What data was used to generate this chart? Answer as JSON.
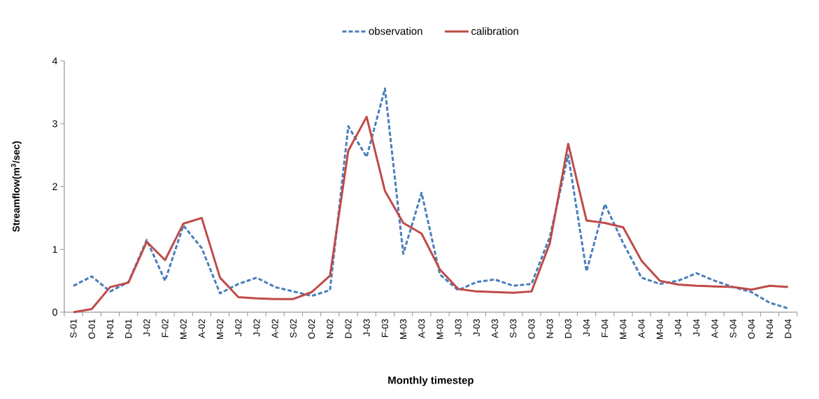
{
  "chart_data": {
    "type": "line",
    "xlabel": "Monthly timestep",
    "ylabel": "Streamflow(m$^{3}$/sec)",
    "categories": [
      "S-01",
      "O-01",
      "N-01",
      "D-01",
      "J-02",
      "F-02",
      "M-02",
      "A-02",
      "M-02",
      "J-02",
      "J-02",
      "A-02",
      "S-02",
      "O-02",
      "N-02",
      "D-02",
      "J-03",
      "F-03",
      "M-03",
      "A-03",
      "M-03",
      "J-03",
      "J-03",
      "A-03",
      "S-03",
      "O-03",
      "N-03",
      "D-03",
      "J-04",
      "F-04",
      "M-04",
      "A-04",
      "M-04",
      "J-04",
      "J-04",
      "A-04",
      "S-04",
      "O-04",
      "N-04",
      "D-04"
    ],
    "series": [
      {
        "name": "observation",
        "color": "#4a7ebb",
        "line_style": "dashed",
        "values": [
          0.42,
          0.57,
          0.33,
          0.48,
          1.15,
          0.5,
          1.38,
          1.02,
          0.3,
          0.45,
          0.55,
          0.4,
          0.33,
          0.26,
          0.35,
          2.96,
          2.47,
          3.56,
          0.93,
          1.9,
          0.6,
          0.35,
          0.48,
          0.52,
          0.42,
          0.45,
          1.2,
          2.5,
          0.65,
          1.72,
          1.1,
          0.55,
          0.45,
          0.5,
          0.62,
          0.5,
          0.4,
          0.32,
          0.15,
          0.06
        ]
      },
      {
        "name": "calibration",
        "color": "#be4b48",
        "line_style": "solid",
        "values": [
          0.0,
          0.05,
          0.4,
          0.47,
          1.12,
          0.83,
          1.41,
          1.5,
          0.55,
          0.24,
          0.22,
          0.21,
          0.21,
          0.32,
          0.58,
          2.57,
          3.11,
          1.93,
          1.42,
          1.25,
          0.68,
          0.37,
          0.33,
          0.32,
          0.31,
          0.33,
          1.1,
          2.68,
          1.46,
          1.42,
          1.35,
          0.82,
          0.5,
          0.44,
          0.42,
          0.41,
          0.4,
          0.36,
          0.42,
          0.4
        ]
      }
    ],
    "ylim": [
      0,
      4
    ],
    "yticks": [
      0,
      1,
      2,
      3,
      4
    ],
    "grid": false,
    "legend": "top",
    "marker": "none"
  }
}
